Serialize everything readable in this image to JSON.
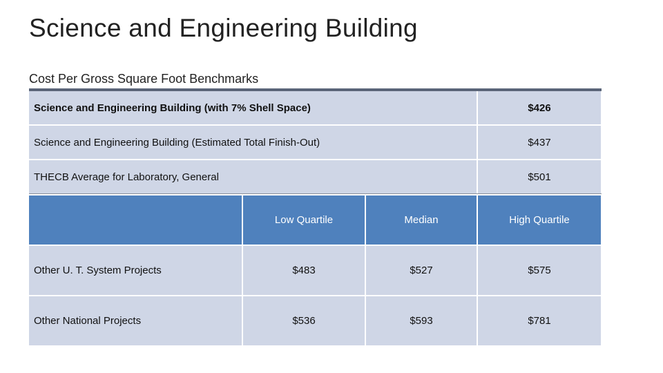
{
  "title": "Science and Engineering Building",
  "subtitle": "Cost Per Gross Square Foot Benchmarks",
  "benchmarks": {
    "rows": [
      [
        "Science and Engineering Building (with 7% Shell Space)",
        "$426"
      ],
      [
        "Science and Engineering Building (Estimated Total Finish-Out)",
        "$437"
      ],
      [
        "THECB Average for Laboratory, General",
        "$501"
      ]
    ]
  },
  "quartiles": {
    "header": [
      "Low Quartile",
      "Median",
      "High Quartile"
    ],
    "rows": [
      [
        "Other U. T. System Projects",
        "$483",
        "$527",
        "$575"
      ],
      [
        "Other National Projects",
        "$536",
        "$593",
        "$781"
      ]
    ]
  }
}
